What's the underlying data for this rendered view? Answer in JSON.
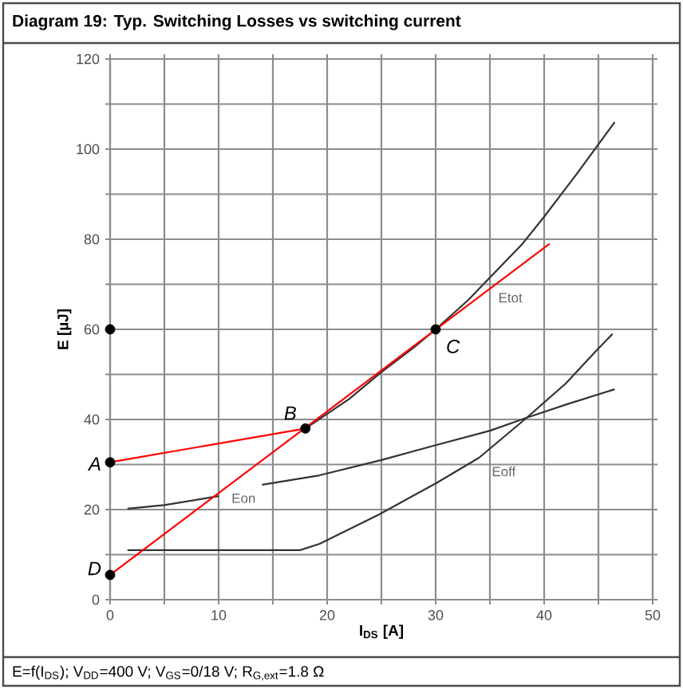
{
  "chart_data": {
    "type": "line",
    "title": "Diagram 19: Typ. Switching Losses vs switching current",
    "xlabel": "I$_{DS}$ [A]",
    "ylabel": "E [µJ]",
    "xlim": [
      0,
      50
    ],
    "ylim": [
      0,
      120
    ],
    "xticks": [
      0,
      {
        "value": 5,
        "label": null
      },
      10,
      {
        "value": 15,
        "label": null
      },
      20,
      {
        "value": 25,
        "label": null
      },
      30,
      {
        "value": 35,
        "label": null
      },
      40,
      {
        "value": 45,
        "label": null
      },
      50
    ],
    "yticks": [
      0,
      {
        "value": 10,
        "label": null
      },
      20,
      {
        "value": 30,
        "label": null
      },
      40,
      {
        "value": 50,
        "label": null
      },
      60,
      {
        "value": 70,
        "label": null
      },
      80,
      {
        "value": 90,
        "label": null
      },
      100,
      {
        "value": 110,
        "label": null
      },
      120
    ],
    "grid": true,
    "marker": "none",
    "line_style": "solid",
    "series": [
      {
        "name": "Etot",
        "color": "#333333",
        "x": [
          18,
          22,
          25,
          28,
          30,
          33,
          35,
          38,
          40,
          43,
          46.5
        ],
        "values": [
          38,
          44.5,
          50.5,
          56,
          60,
          66.5,
          71.5,
          79,
          85,
          94.5,
          106
        ]
      },
      {
        "name": "Eon",
        "color": "#333333",
        "x": [
          1.6,
          5,
          10,
          12,
          14,
          19.3,
          25,
          30,
          35,
          38.4,
          42,
          46.5
        ],
        "values": [
          20.2,
          21,
          23,
          null,
          25.5,
          27.6,
          31,
          34.3,
          37.5,
          40.4,
          43.3,
          46.7
        ]
      },
      {
        "name": "Eoff",
        "color": "#333333",
        "x": [
          1.6,
          17.5,
          19.3,
          24.7,
          30,
          34,
          38.4,
          42,
          44.7,
          46.3
        ],
        "values": [
          11,
          11,
          12.4,
          18.8,
          25.8,
          31.5,
          40.4,
          48,
          55,
          59
        ]
      },
      {
        "color": "#ff0000",
        "x": [
          0,
          18
        ],
        "values": [
          30.5,
          38
        ]
      },
      {
        "color": "#ff0000",
        "x": [
          0,
          40.5
        ],
        "values": [
          5.5,
          79
        ]
      },
      {
        "type": "scatter",
        "marker": "circle",
        "color": "#000000",
        "x": [
          0,
          18,
          30,
          0,
          0
        ],
        "values": [
          30.5,
          38,
          60,
          5.5,
          60
        ]
      }
    ],
    "annotations": [
      {
        "text": "A",
        "x": 0,
        "y": 30.5
      },
      {
        "text": "B",
        "x": 18,
        "y": 38
      },
      {
        "text": "C",
        "x": 30,
        "y": 60
      },
      {
        "text": "D",
        "x": 0,
        "y": 5.5
      },
      "E=f(I$_{DS}$); V$_{DD}$=400 V; V$_{GS}$=0/18 V; R$_{G,ext}$=1.8 Ω"
    ]
  }
}
